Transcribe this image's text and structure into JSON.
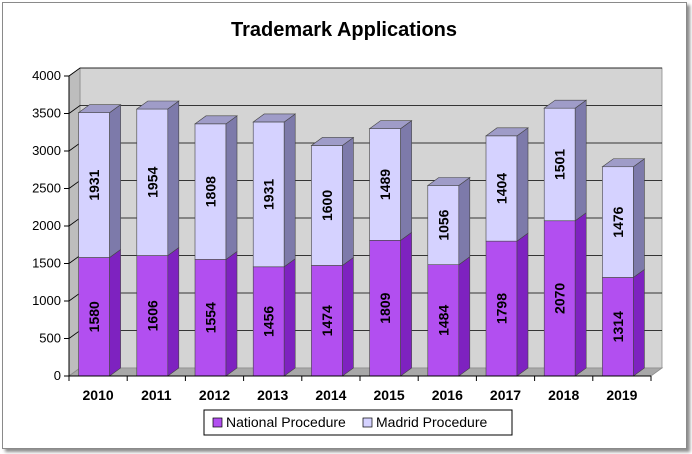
{
  "chart_data": {
    "type": "bar",
    "stacked": true,
    "title": "Trademark Applications",
    "categories": [
      "2010",
      "2011",
      "2012",
      "2013",
      "2014",
      "2015",
      "2016",
      "2017",
      "2018",
      "2019"
    ],
    "series": [
      {
        "name": "National Procedure",
        "values": [
          1580,
          1606,
          1554,
          1456,
          1474,
          1809,
          1484,
          1798,
          2070,
          1314
        ],
        "color": "#b24ff0",
        "side_color": "#7e22c0",
        "top_color": "#9a3fd8"
      },
      {
        "name": "Madrid Procedure",
        "values": [
          1931,
          1954,
          1808,
          1931,
          1600,
          1489,
          1056,
          1404,
          1501,
          1476
        ],
        "color": "#d5d2ff",
        "side_color": "#7d7aaa",
        "top_color": "#9f9cc8"
      }
    ],
    "ylim": [
      0,
      4000
    ],
    "yticks": [
      0,
      500,
      1000,
      1500,
      2000,
      2500,
      3000,
      3500,
      4000
    ],
    "grid": true,
    "legend_position": "bottom",
    "plot_background": "#d4d4d4",
    "floor_color": "#a8a8a8"
  }
}
